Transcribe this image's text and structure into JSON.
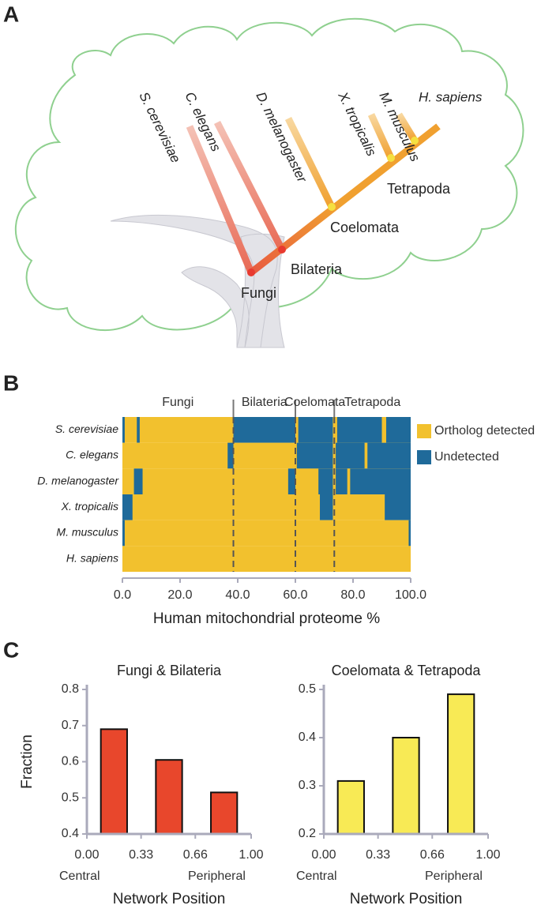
{
  "panel_labels": [
    "A",
    "B",
    "C"
  ],
  "tree": {
    "species": [
      "S. cerevisiae",
      "C. elegans",
      "D. melanogaster",
      "X. tropicalis",
      "M. musculus",
      "H. sapiens"
    ],
    "clades": [
      "Fungi",
      "Bilateria",
      "Coelomata",
      "Tetrapoda"
    ]
  },
  "chart_data": [
    {
      "type": "heatmap",
      "xlabel": "Human mitochondrial proteome %",
      "categories": [
        "S. cerevisiae",
        "C. elegans",
        "D. melanogaster",
        "X. tropicalis",
        "M. musculus",
        "H. sapiens"
      ],
      "xlim": [
        0,
        100
      ],
      "xticks": [
        {
          "value": 0,
          "label": "0.0"
        },
        {
          "value": 20,
          "label": "20.0"
        },
        {
          "value": 40,
          "label": "40.0"
        },
        {
          "value": 60,
          "label": "60.0"
        },
        {
          "value": 80,
          "label": "80.0"
        },
        {
          "value": 100,
          "label": "100.0"
        }
      ],
      "regions": [
        "Fungi",
        "Bilateria",
        "Coelomata",
        "Tetrapoda"
      ],
      "boundaries": [
        38.5,
        60,
        73.5
      ],
      "series": [
        {
          "name": "Ortholog detected",
          "color": "#f2c12e"
        },
        {
          "name": "Undetected",
          "color": "#1f6a9a",
          "intervals": [
            [
              [
                0,
                0.8
              ],
              [
                5,
                6
              ],
              [
                38.5,
                60
              ],
              [
                61,
                73
              ],
              [
                74.5,
                90
              ],
              [
                91.5,
                100
              ]
            ],
            [
              [
                36.5,
                38.5
              ],
              [
                60.5,
                73
              ],
              [
                74,
                84
              ],
              [
                85,
                100
              ]
            ],
            [
              [
                4,
                7
              ],
              [
                57.5,
                60
              ],
              [
                68,
                73
              ],
              [
                74,
                78
              ],
              [
                79,
                100
              ]
            ],
            [
              [
                0,
                3.5
              ],
              [
                68.5,
                73
              ],
              [
                91,
                100
              ]
            ],
            [
              [
                0,
                0.8
              ],
              [
                99.3,
                100
              ]
            ],
            []
          ]
        }
      ]
    },
    {
      "type": "bar",
      "title": "Fungi & Bilateria",
      "ylabel": "Fraction",
      "xlabel": "Network Position",
      "x_end_labels": [
        "Central",
        "Peripheral"
      ],
      "x": [
        0.165,
        0.5,
        0.835
      ],
      "values": [
        0.69,
        0.605,
        0.515
      ],
      "color": "#e8472c",
      "xlim": [
        0,
        1
      ],
      "xticks": [
        {
          "value": 0,
          "label": "0.00"
        },
        {
          "value": 0.33,
          "label": "0.33"
        },
        {
          "value": 0.66,
          "label": "0.66"
        },
        {
          "value": 1,
          "label": "1.00"
        }
      ],
      "ylim": [
        0.4,
        0.8
      ],
      "yticks": [
        0.4,
        0.5,
        0.6,
        0.7,
        0.8
      ]
    },
    {
      "type": "bar",
      "title": "Coelomata & Tetrapoda",
      "xlabel": "Network Position",
      "x_end_labels": [
        "Central",
        "Peripheral"
      ],
      "x": [
        0.165,
        0.5,
        0.835
      ],
      "values": [
        0.31,
        0.4,
        0.49
      ],
      "color": "#f8ea55",
      "xlim": [
        0,
        1
      ],
      "xticks": [
        {
          "value": 0,
          "label": "0.00"
        },
        {
          "value": 0.33,
          "label": "0.33"
        },
        {
          "value": 0.66,
          "label": "0.66"
        },
        {
          "value": 1,
          "label": "1.00"
        }
      ],
      "ylim": [
        0.2,
        0.5
      ],
      "yticks": [
        0.2,
        0.3,
        0.4,
        0.5
      ]
    }
  ]
}
